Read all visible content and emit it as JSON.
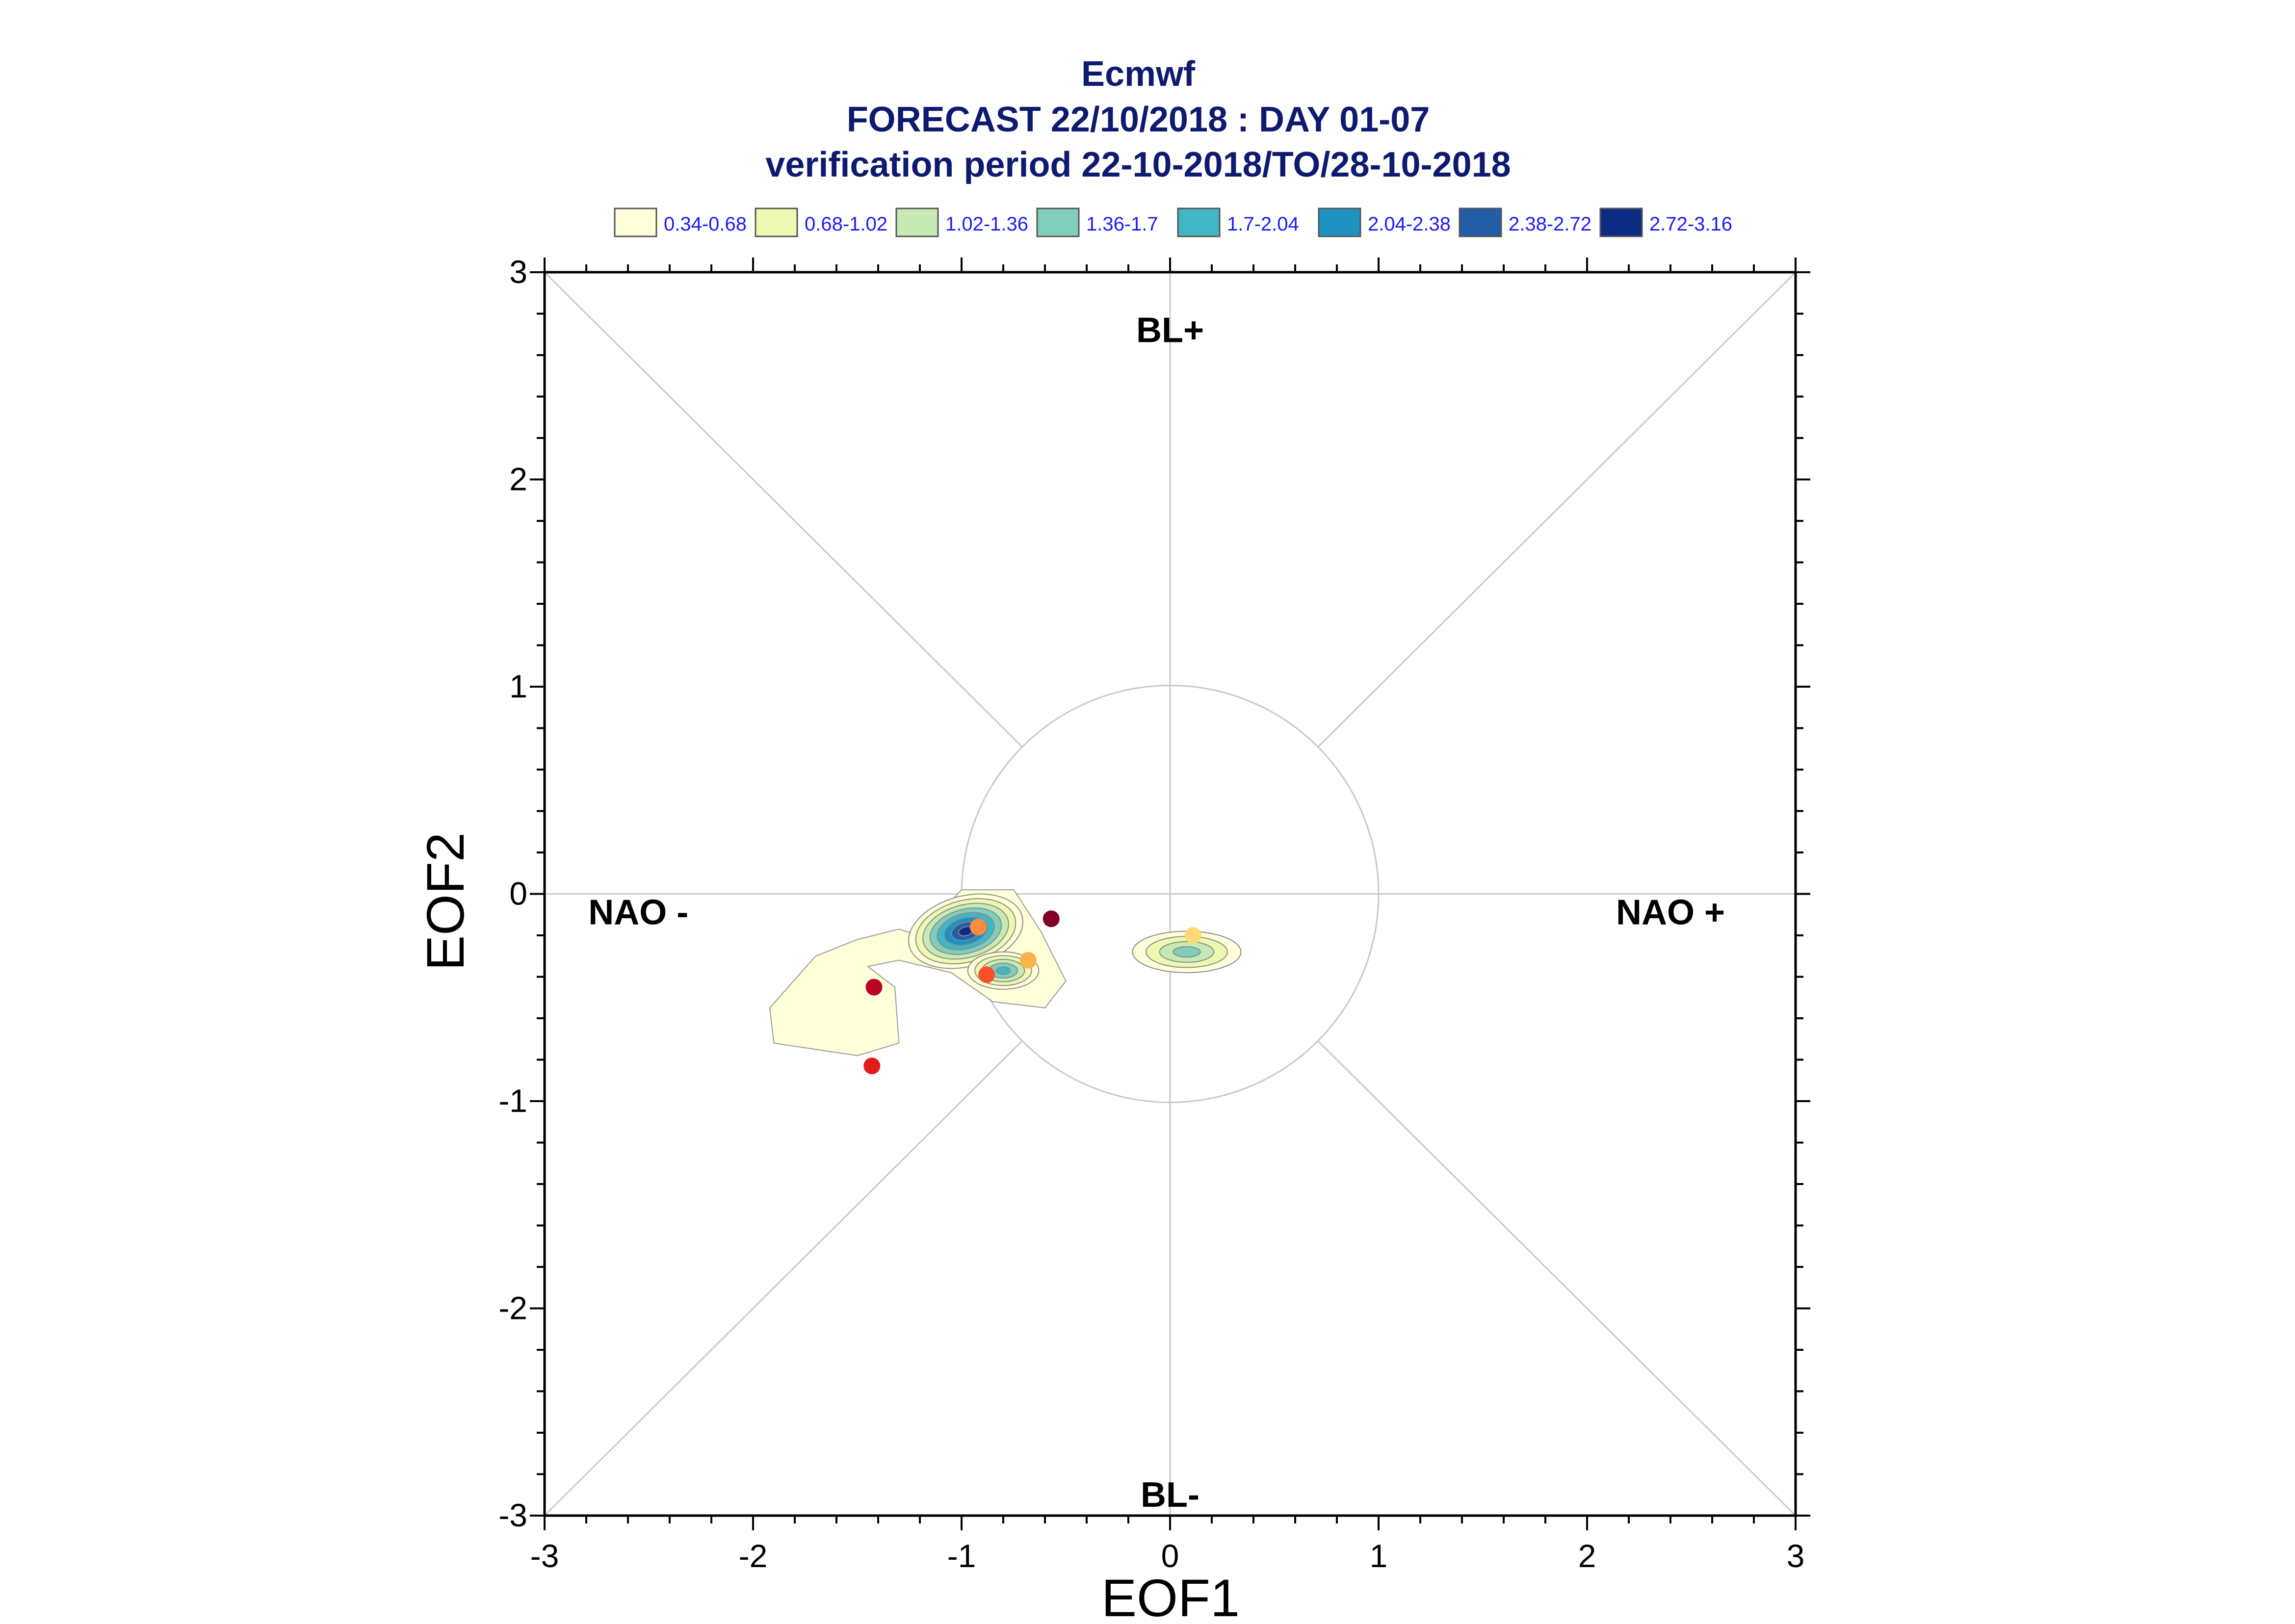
{
  "chart_data": {
    "type": "scatter",
    "title": "Ecmwf",
    "subtitle": "FORECAST 22/10/2018 : DAY 01-07",
    "subtitle2": "verification period 22-10-2018/TO/28-10-2018",
    "xlabel": "EOF1",
    "ylabel": "EOF2",
    "xlim": [
      -3,
      3
    ],
    "ylim": [
      -3,
      3
    ],
    "xticks": [
      "-3",
      "-2",
      "-1",
      "0",
      "1",
      "2",
      "3"
    ],
    "yticks": [
      "3",
      "2",
      "1",
      "0",
      "-1",
      "-2",
      "-3"
    ],
    "grid": false,
    "reference_circle_radius": 1,
    "regime_labels": [
      {
        "text": "BL+",
        "x": 0,
        "y": 2.72
      },
      {
        "text": "BL-",
        "x": 0,
        "y": -2.9
      },
      {
        "text": "NAO -",
        "x": -2.55,
        "y": -0.09
      },
      {
        "text": "NAO +",
        "x": 2.4,
        "y": -0.09
      }
    ],
    "legend": {
      "placement": "top",
      "entries": [
        {
          "label": "0.34-0.68",
          "color": "#ffffd9"
        },
        {
          "label": "0.68-1.02",
          "color": "#edf8b1"
        },
        {
          "label": "1.02-1.36",
          "color": "#c7e9b4"
        },
        {
          "label": "1.36-1.7",
          "color": "#7fcdbb"
        },
        {
          "label": "1.7-2.04",
          "color": "#41b6c4"
        },
        {
          "label": "2.04-2.38",
          "color": "#1d91c0"
        },
        {
          "label": "2.38-2.72",
          "color": "#225ea8"
        },
        {
          "label": "2.72-3.16",
          "color": "#0c2c84"
        }
      ]
    },
    "density_blobs": [
      {
        "cx": -0.98,
        "cy": -0.18,
        "rx": 0.28,
        "ry": 0.17,
        "angle": -15,
        "peak_level": 8
      },
      {
        "cx": -0.8,
        "cy": -0.37,
        "rx": 0.17,
        "ry": 0.09,
        "angle": 0,
        "peak_level": 5
      },
      {
        "cx": 0.08,
        "cy": -0.28,
        "rx": 0.26,
        "ry": 0.1,
        "angle": 0,
        "peak_level": 4
      }
    ],
    "points": [
      {
        "x": -0.57,
        "y": -0.12,
        "color": "#800026"
      },
      {
        "x": -1.42,
        "y": -0.45,
        "color": "#bd0026"
      },
      {
        "x": -1.43,
        "y": -0.83,
        "color": "#e31a1c"
      },
      {
        "x": -0.88,
        "y": -0.39,
        "color": "#fc4e2a"
      },
      {
        "x": -0.92,
        "y": -0.16,
        "color": "#fd8d3c"
      },
      {
        "x": -0.68,
        "y": -0.32,
        "color": "#feb24c"
      },
      {
        "x": 0.11,
        "y": -0.2,
        "color": "#fed976"
      }
    ]
  }
}
